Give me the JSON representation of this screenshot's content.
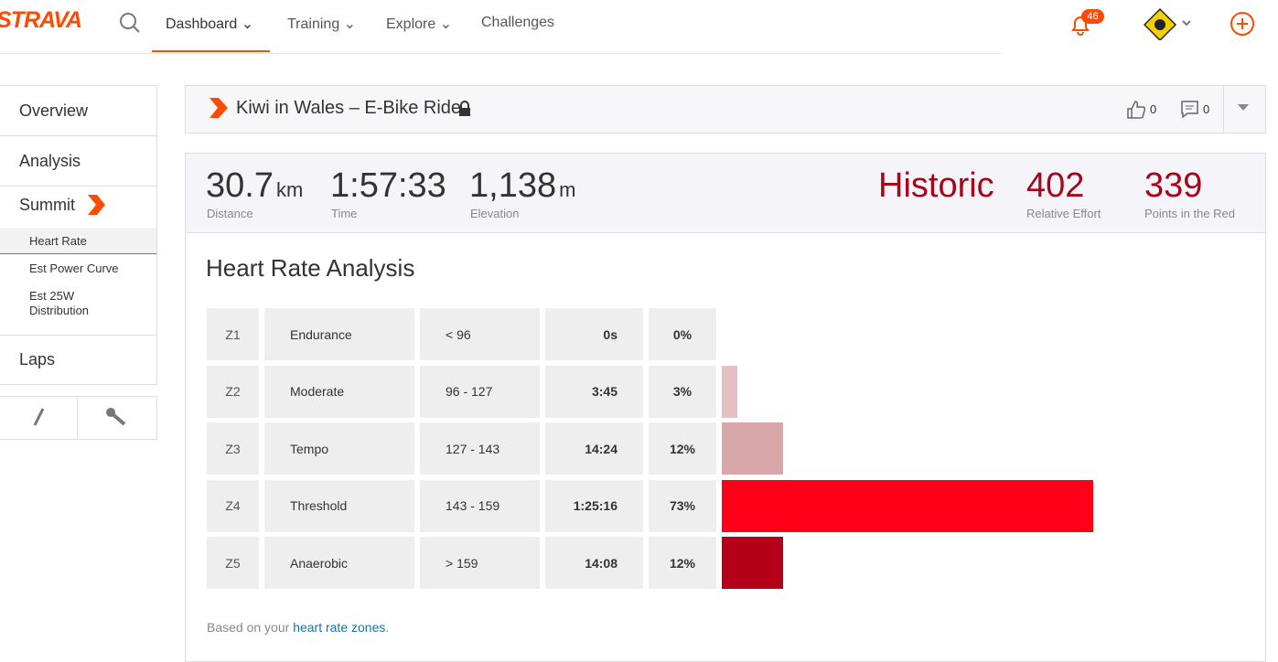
{
  "nav": {
    "logo": "STRAVA",
    "items": [
      "Dashboard",
      "Training",
      "Explore",
      "Challenges"
    ],
    "notifications": 46
  },
  "sidebar": {
    "overview": "Overview",
    "analysis": "Analysis",
    "summit": "Summit",
    "sub_items": [
      "Heart Rate",
      "Est Power Curve",
      "Est 25W Distribution"
    ],
    "laps": "Laps"
  },
  "activity": {
    "title": "Kiwi in Wales – E-Bike Ride",
    "kudos": 0,
    "comments": 0
  },
  "stats": [
    {
      "value": 30.7,
      "unit": "km",
      "label": "Distance"
    },
    {
      "value": "1:57:33",
      "label": "Time"
    },
    {
      "value": "1,138",
      "unit": "m",
      "label": "Elevation"
    }
  ],
  "effort": {
    "badge": "Historic",
    "relative_effort": 402,
    "relative_effort_label": "Relative Effort",
    "points": 339,
    "points_label": "Points in the Red"
  },
  "heart_rate": {
    "title": "Heart Rate Analysis",
    "zones": [
      {
        "zone": "Z1",
        "name": "Endurance",
        "range": "< 96",
        "time": "0s",
        "percent": 0,
        "percent_label": "0%",
        "color": "#f0d6d8"
      },
      {
        "zone": "Z2",
        "name": "Moderate",
        "range": "96 - 127",
        "time": "3:45",
        "percent": 3,
        "percent_label": "3%",
        "color": "#e6c1c4"
      },
      {
        "zone": "Z3",
        "name": "Tempo",
        "range": "127 - 143",
        "time": "14:24",
        "percent": 12,
        "percent_label": "12%",
        "color": "#d9a6a9"
      },
      {
        "zone": "Z4",
        "name": "Threshold",
        "range": "143 - 159",
        "time": "1:25:16",
        "percent": 73,
        "percent_label": "73%",
        "color": "#ff0019"
      },
      {
        "zone": "Z5",
        "name": "Anaerobic",
        "range": "> 159",
        "time": "14:08",
        "percent": 12,
        "percent_label": "12%",
        "color": "#b6001a"
      }
    ],
    "footer_prefix": "Based on your",
    "footer_link": "heart rate zones",
    "footer_suffix": "."
  }
}
